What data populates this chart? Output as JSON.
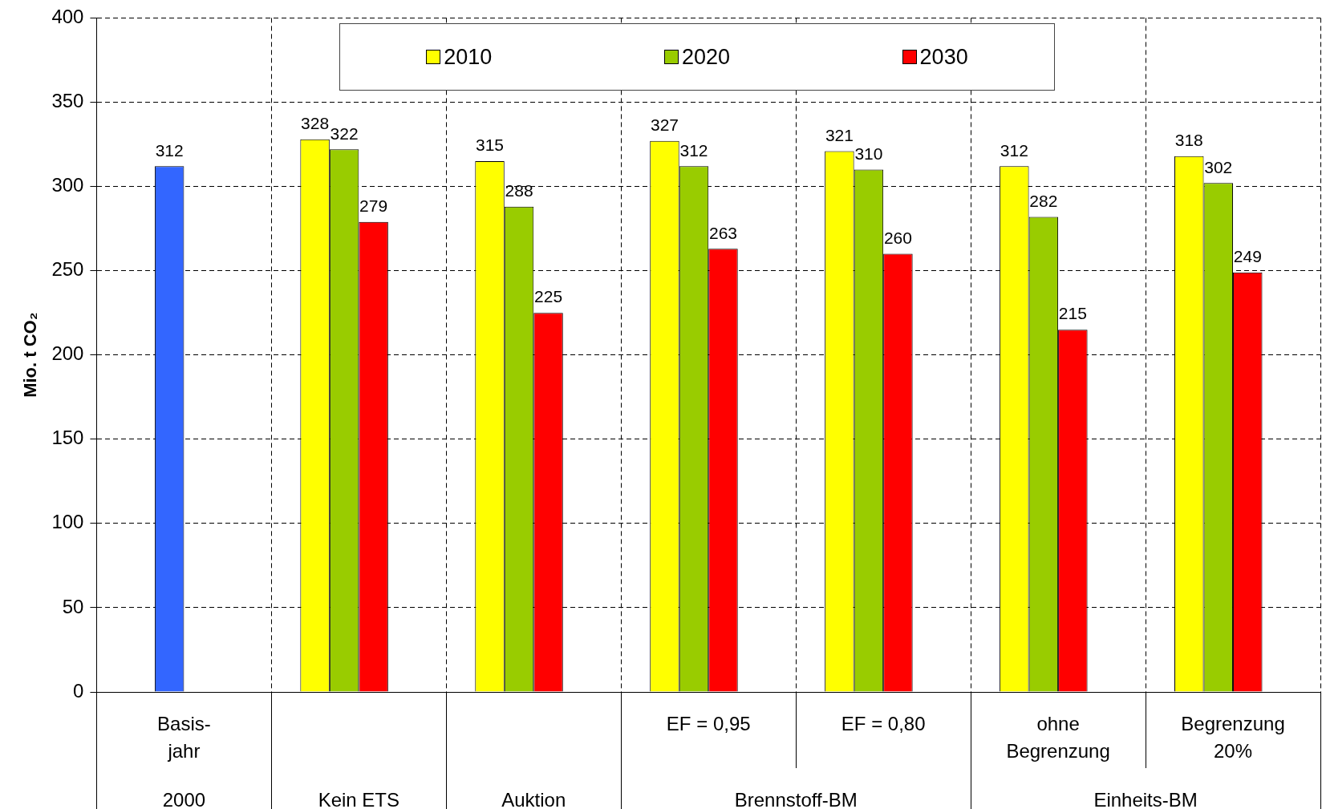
{
  "chart_data": {
    "type": "bar",
    "ylabel": "Mio. t CO₂",
    "categories": [
      "Basis-\njahr",
      null,
      null,
      "EF = 0,95",
      "EF = 0,80",
      "ohne\nBegrenzung",
      "Begrenzung\n20%"
    ],
    "series": [
      {
        "color": "#3366ff",
        "values": [
          312,
          null,
          null,
          null,
          null,
          null,
          null
        ]
      },
      {
        "name": "2010",
        "color": "#ffff00",
        "values": [
          null,
          328,
          315,
          327,
          321,
          312,
          318
        ]
      },
      {
        "name": "2020",
        "color": "#99cc00",
        "values": [
          null,
          322,
          288,
          312,
          310,
          282,
          302
        ]
      },
      {
        "name": "2030",
        "color": "#ff0000",
        "values": [
          null,
          279,
          225,
          263,
          260,
          215,
          249
        ]
      }
    ],
    "ylim": [
      0,
      400
    ],
    "yticks": [
      0,
      50,
      100,
      150,
      200,
      250,
      300,
      350,
      400
    ],
    "grid": true,
    "legend": "top",
    "data_labels": true,
    "annotations": [
      "2000",
      "Kein ETS",
      "Auktion",
      "Brennstoff-BM",
      "Einheits-BM"
    ]
  }
}
